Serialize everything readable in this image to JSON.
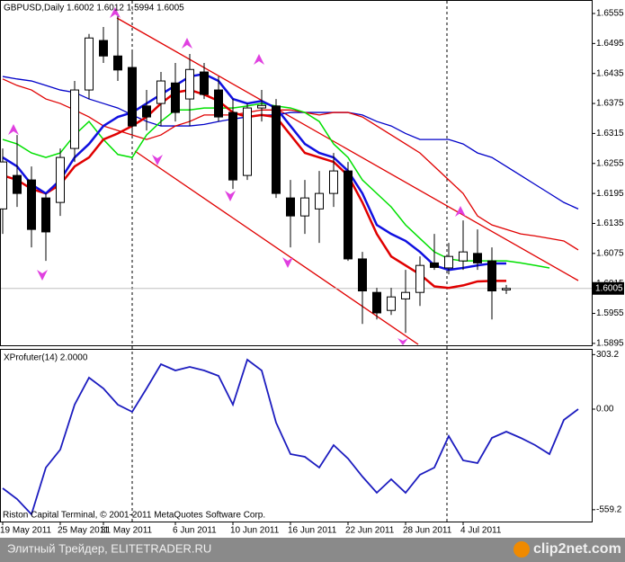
{
  "chart_data": [
    {
      "type": "candlestick",
      "title": "GBPUSD,Daily  1.6002 1.6012 1.5994 1.6005",
      "categories": [
        "19 May 2011",
        null,
        null,
        null,
        "25 May 2011",
        null,
        null,
        "31 May 2011",
        null,
        null,
        null,
        null,
        "6 Jun 2011",
        null,
        null,
        null,
        "10 Jun 2011",
        null,
        null,
        null,
        "16 Jun 2011",
        null,
        null,
        null,
        "22 Jun 2011",
        null,
        null,
        null,
        "28 Jun 2011",
        null,
        null,
        null,
        "4 Jul 2011",
        null,
        null,
        null,
        null,
        null,
        null,
        null,
        null
      ],
      "open": [
        1.6164,
        1.6231,
        1.6222,
        1.6186,
        1.6177,
        1.6285,
        1.6402,
        1.6501,
        1.647,
        1.6447,
        1.637,
        1.6375,
        1.6416,
        1.6384,
        1.6438,
        1.6402,
        1.6357,
        1.6231,
        1.6366,
        1.637,
        1.6186,
        1.615,
        1.6164,
        1.6195,
        1.624,
        1.6064,
        1.5997,
        1.5961,
        1.5984,
        1.5997,
        1.6056,
        1.6046,
        1.606,
        1.6075,
        1.606,
        1.6002,
        null,
        null,
        null,
        null,
        null
      ],
      "high": [
        1.6285,
        1.6312,
        1.6249,
        1.6195,
        1.6285,
        1.642,
        1.6514,
        1.6528,
        1.6555,
        1.6483,
        1.6402,
        1.6438,
        1.6456,
        1.6474,
        1.6456,
        1.6429,
        1.6384,
        1.6375,
        1.6402,
        1.6384,
        1.6222,
        1.6222,
        1.624,
        1.6276,
        1.6258,
        1.6078,
        1.6006,
        1.6006,
        1.6042,
        1.6069,
        1.6114,
        1.6096,
        1.6141,
        1.6123,
        1.6087,
        1.6012,
        null,
        null,
        null,
        null,
        null
      ],
      "low": [
        1.6114,
        1.6168,
        1.6087,
        1.606,
        1.615,
        1.6258,
        1.6384,
        1.6456,
        1.642,
        1.6312,
        1.6321,
        1.633,
        1.6339,
        1.633,
        1.6384,
        1.6339,
        1.6204,
        1.6222,
        1.6339,
        1.6186,
        1.6087,
        1.6114,
        1.6096,
        1.6168,
        1.606,
        1.5934,
        1.5943,
        1.5952,
        1.5916,
        1.597,
        1.6042,
        1.6033,
        1.6042,
        1.6042,
        1.5943,
        1.5994,
        null,
        null,
        null,
        null,
        null
      ],
      "close": [
        1.6258,
        1.6195,
        1.6123,
        1.6118,
        1.6267,
        1.6402,
        1.6506,
        1.647,
        1.6442,
        1.633,
        1.6348,
        1.642,
        1.6357,
        1.6443,
        1.6393,
        1.6348,
        1.6222,
        1.6366,
        1.6371,
        1.6195,
        1.615,
        1.6186,
        1.6195,
        1.624,
        1.6064,
        1.6,
        1.5956,
        1.5988,
        1.5997,
        1.6051,
        1.6047,
        1.6069,
        1.6078,
        1.6056,
        1.6,
        1.6005,
        null,
        null,
        null,
        null,
        null
      ],
      "candle_colors": {
        "up": "#ffffff",
        "down": "#000000",
        "outline": "#000000"
      },
      "series": [
        {
          "color": "#0000c8",
          "width": 1.3,
          "values": [
            1.6429,
            1.6424,
            1.642,
            1.6411,
            1.6402,
            1.6397,
            1.6384,
            1.6375,
            1.6366,
            1.6352,
            1.6339,
            1.633,
            1.633,
            1.633,
            1.6333,
            1.6339,
            1.6344,
            1.6348,
            1.6352,
            1.6352,
            1.6357,
            1.6357,
            1.6357,
            1.6357,
            1.6357,
            1.6352,
            1.6339,
            1.633,
            1.6315,
            1.6303,
            1.6303,
            1.6303,
            1.6294,
            1.6276,
            1.6267,
            1.6249,
            1.6231,
            1.6213,
            1.6195,
            1.6177,
            1.6164
          ]
        },
        {
          "color": "#e00000",
          "width": 1.3,
          "values": [
            1.6424,
            1.6411,
            1.6402,
            1.6384,
            1.6375,
            1.6362,
            1.6348,
            1.633,
            1.6321,
            1.6312,
            1.6303,
            1.6312,
            1.633,
            1.6339,
            1.6352,
            1.6352,
            1.6352,
            1.6357,
            1.6362,
            1.6362,
            1.6362,
            1.6357,
            1.6352,
            1.6357,
            1.6357,
            1.6348,
            1.633,
            1.6312,
            1.6294,
            1.6276,
            1.6249,
            1.6222,
            1.6195,
            1.615,
            1.6132,
            1.6123,
            1.6114,
            1.611,
            1.6105,
            1.61,
            1.6082
          ]
        },
        {
          "color": "#00e000",
          "width": 1.5,
          "values": [
            1.6303,
            1.6294,
            1.6276,
            1.6267,
            1.6276,
            1.6312,
            1.6339,
            1.6303,
            1.6273,
            1.6267,
            1.6312,
            1.6339,
            1.6362,
            1.6362,
            1.6366,
            1.6366,
            1.6366,
            1.637,
            1.6375,
            1.637,
            1.6366,
            1.6357,
            1.6339,
            1.6294,
            1.6267,
            1.6222,
            1.6195,
            1.6168,
            1.6132,
            1.6105,
            1.6078,
            1.6064,
            1.606,
            1.606,
            1.606,
            1.606,
            1.6056,
            1.6051,
            1.6046,
            null,
            null
          ]
        },
        {
          "color": "#e00000",
          "width": 2.5,
          "values": [
            1.6231,
            1.6222,
            1.6204,
            1.6195,
            1.6213,
            1.6249,
            1.6267,
            1.6303,
            1.6315,
            1.633,
            1.6348,
            1.6375,
            1.6397,
            1.6402,
            1.6393,
            1.638,
            1.6357,
            1.6348,
            1.6352,
            1.6348,
            1.6312,
            1.6276,
            1.6267,
            1.6258,
            1.6231,
            1.6177,
            1.6114,
            1.6069,
            1.6051,
            1.6033,
            1.6009,
            1.6006,
            1.6011,
            1.6019,
            1.602,
            1.602,
            null,
            null,
            null,
            null,
            null
          ]
        },
        {
          "color": "#1010e0",
          "width": 2.5,
          "values": [
            1.6267,
            1.6249,
            1.6213,
            1.6195,
            1.6222,
            1.6267,
            1.6294,
            1.633,
            1.6348,
            1.6357,
            1.6375,
            1.6393,
            1.6411,
            1.6429,
            1.6434,
            1.642,
            1.6384,
            1.6375,
            1.638,
            1.6366,
            1.633,
            1.6294,
            1.6276,
            1.6267,
            1.624,
            1.6195,
            1.6132,
            1.6114,
            1.61,
            1.6078,
            1.6051,
            1.6042,
            1.6046,
            1.6051,
            1.6055,
            1.6055,
            null,
            null,
            null,
            null,
            null
          ]
        }
      ],
      "ylim": [
        1.5893,
        1.6582
      ],
      "yticks": [
        1.6555,
        1.6495,
        1.6435,
        1.6375,
        1.6315,
        1.6255,
        1.6195,
        1.6135,
        1.6075,
        1.6015,
        1.5955,
        1.5895
      ],
      "last_price": 1.6005
    },
    {
      "type": "line",
      "title": "XProfuter(14) 2.0000",
      "color": "#1c1cbf",
      "values": [
        -440,
        -500,
        -585,
        -325,
        -225,
        25,
        175,
        115,
        25,
        -15,
        115,
        250,
        215,
        235,
        215,
        185,
        25,
        275,
        215,
        -75,
        -250,
        -265,
        -325,
        -200,
        -275,
        -375,
        -465,
        -390,
        -465,
        -365,
        -325,
        -150,
        -285,
        -300,
        -160,
        -125,
        -160,
        -200,
        -250,
        -60,
        0
      ],
      "ylim": [
        -625,
        325
      ],
      "yticks": [
        303.2,
        {
          "value": 0,
          "label": "0.00"
        },
        -559.2
      ],
      "note": "Riston Capital Terminal, © 2001-2011 MetaQuotes Software Corp."
    }
  ],
  "footer": {
    "site": "Элитный Трейдер, ELITETRADER.RU",
    "logo": "clip2net.com"
  }
}
